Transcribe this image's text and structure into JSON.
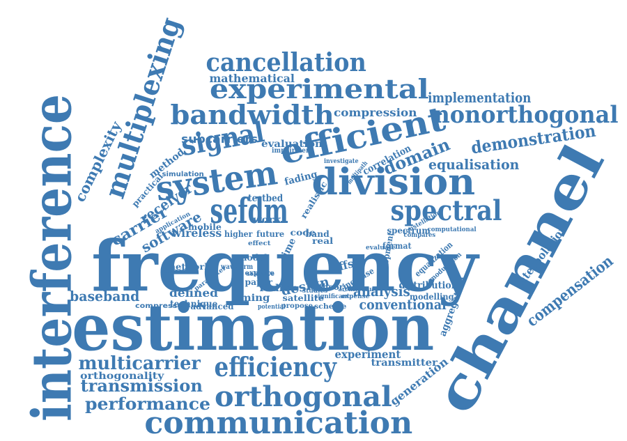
{
  "colors": {
    "word": "#3e7ab2",
    "background": "#ffffff"
  },
  "words": [
    {
      "text": "frequency"
    },
    {
      "text": "estimation"
    },
    {
      "text": "interference"
    },
    {
      "text": "channel"
    },
    {
      "text": "communication"
    },
    {
      "text": "orthogonal"
    },
    {
      "text": "efficiency"
    },
    {
      "text": "division"
    },
    {
      "text": "sefdm"
    },
    {
      "text": "system"
    },
    {
      "text": "efficient"
    },
    {
      "text": "spectral"
    },
    {
      "text": "signal"
    },
    {
      "text": "bandwidth"
    },
    {
      "text": "experimental"
    },
    {
      "text": "cancellation"
    },
    {
      "text": "nonorthogonal"
    },
    {
      "text": "multiplexing"
    },
    {
      "text": "multicarrier"
    },
    {
      "text": "transmission"
    },
    {
      "text": "performance"
    },
    {
      "text": "compensation"
    },
    {
      "text": "demonstration"
    },
    {
      "text": "domain"
    },
    {
      "text": "conventional"
    },
    {
      "text": "analysis"
    },
    {
      "text": "equalisation"
    },
    {
      "text": "implementation"
    },
    {
      "text": "baseband"
    },
    {
      "text": "carrier"
    },
    {
      "text": "receiver"
    },
    {
      "text": "software"
    },
    {
      "text": "complexity"
    },
    {
      "text": "mathematical"
    },
    {
      "text": "subcarriers"
    },
    {
      "text": "compression"
    },
    {
      "text": "evaluation"
    },
    {
      "text": "experiment"
    },
    {
      "text": "generation"
    },
    {
      "text": "orthogonality"
    },
    {
      "text": "transmitter"
    },
    {
      "text": "interpolation"
    },
    {
      "text": "aggregation"
    },
    {
      "text": "defined"
    },
    {
      "text": "design"
    },
    {
      "text": "timing"
    },
    {
      "text": "offset"
    },
    {
      "text": "wireless"
    },
    {
      "text": "technique"
    },
    {
      "text": "method"
    },
    {
      "text": "practical"
    },
    {
      "text": "correlation"
    },
    {
      "text": "distribution"
    },
    {
      "text": "modelling"
    },
    {
      "text": "fading"
    },
    {
      "text": "testbed"
    },
    {
      "text": "realistic"
    },
    {
      "text": "spectrum"
    },
    {
      "text": "network"
    },
    {
      "text": "radio"
    },
    {
      "text": "satellite"
    },
    {
      "text": "theory"
    },
    {
      "text": "increase"
    },
    {
      "text": "work"
    },
    {
      "text": "mobile"
    },
    {
      "text": "band"
    },
    {
      "text": "future"
    },
    {
      "text": "code"
    },
    {
      "text": "real"
    },
    {
      "text": "time"
    },
    {
      "text": "higher"
    },
    {
      "text": "model"
    },
    {
      "text": "propose"
    },
    {
      "text": "scheme"
    },
    {
      "text": "compressed"
    },
    {
      "text": "advanced"
    },
    {
      "text": "paper"
    },
    {
      "text": "explore"
    },
    {
      "text": "simulation"
    },
    {
      "text": "impairment"
    },
    {
      "text": "development"
    },
    {
      "text": "equalization"
    },
    {
      "text": "modulation"
    },
    {
      "text": "computational"
    },
    {
      "text": "application"
    },
    {
      "text": "format"
    },
    {
      "text": "waveform"
    },
    {
      "text": "studies"
    },
    {
      "text": "significant"
    },
    {
      "text": "potential"
    },
    {
      "text": "architecture"
    },
    {
      "text": "multipath"
    },
    {
      "text": "investigate"
    },
    {
      "text": "evaluate"
    },
    {
      "text": "constellation"
    },
    {
      "text": "detection"
    },
    {
      "text": "effect"
    },
    {
      "text": "parameter"
    },
    {
      "text": "selective"
    },
    {
      "text": "expense"
    },
    {
      "text": "compares"
    }
  ]
}
